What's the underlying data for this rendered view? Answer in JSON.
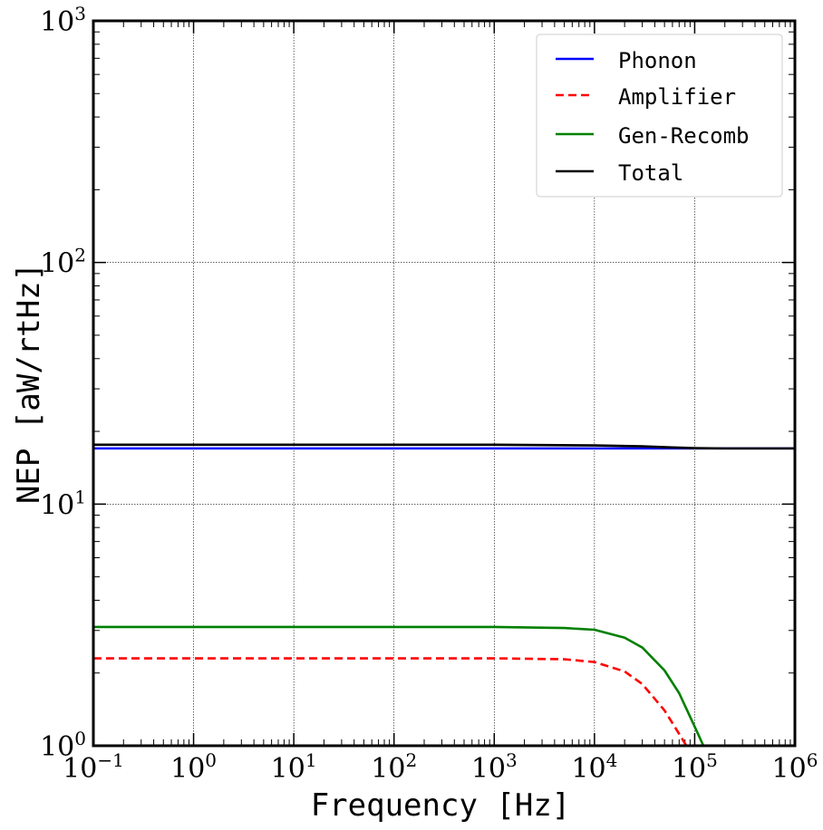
{
  "chart_data": {
    "type": "line",
    "xscale": "log",
    "yscale": "log",
    "xlim": [
      0.1,
      1000000
    ],
    "ylim": [
      1,
      1000
    ],
    "xlabel": "Frequency [Hz]",
    "ylabel": "NEP [aW/rtHz]",
    "title": "",
    "grid": true,
    "legend_position": "top-right",
    "x_ticks": [
      {
        "base": "10",
        "exp": "−1",
        "value": 0.1
      },
      {
        "base": "10",
        "exp": "0",
        "value": 1
      },
      {
        "base": "10",
        "exp": "1",
        "value": 10
      },
      {
        "base": "10",
        "exp": "2",
        "value": 100
      },
      {
        "base": "10",
        "exp": "3",
        "value": 1000
      },
      {
        "base": "10",
        "exp": "4",
        "value": 10000
      },
      {
        "base": "10",
        "exp": "5",
        "value": 100000
      },
      {
        "base": "10",
        "exp": "6",
        "value": 1000000
      }
    ],
    "y_ticks": [
      {
        "base": "10",
        "exp": "0",
        "value": 1
      },
      {
        "base": "10",
        "exp": "1",
        "value": 10
      },
      {
        "base": "10",
        "exp": "2",
        "value": 100
      },
      {
        "base": "10",
        "exp": "3",
        "value": 1000
      }
    ],
    "series": [
      {
        "name": "Phonon",
        "color": "#0000ff",
        "style": "solid",
        "x": [
          0.1,
          1,
          10,
          100,
          1000,
          10000,
          100000,
          1000000
        ],
        "y": [
          17.0,
          17.0,
          17.0,
          17.0,
          17.0,
          17.0,
          17.0,
          17.0
        ]
      },
      {
        "name": "Amplifier",
        "color": "#ff0000",
        "style": "dashed",
        "x": [
          0.1,
          1,
          10,
          100,
          1000,
          5000,
          10000,
          20000,
          30000,
          50000,
          70000,
          85000
        ],
        "y": [
          2.3,
          2.3,
          2.3,
          2.3,
          2.3,
          2.28,
          2.22,
          2.03,
          1.8,
          1.4,
          1.12,
          0.98
        ]
      },
      {
        "name": "Gen-Recomb",
        "color": "#008000",
        "style": "solid",
        "x": [
          0.1,
          1,
          10,
          100,
          1000,
          5000,
          10000,
          20000,
          30000,
          50000,
          70000,
          100000,
          125000
        ],
        "y": [
          3.1,
          3.1,
          3.1,
          3.1,
          3.1,
          3.07,
          3.02,
          2.8,
          2.55,
          2.05,
          1.65,
          1.2,
          0.98
        ]
      },
      {
        "name": "Total",
        "color": "#000000",
        "style": "solid",
        "x": [
          0.1,
          1,
          10,
          100,
          1000,
          10000,
          30000,
          60000,
          100000,
          200000,
          1000000
        ],
        "y": [
          17.6,
          17.6,
          17.6,
          17.6,
          17.6,
          17.5,
          17.35,
          17.15,
          17.05,
          17.0,
          17.0
        ]
      }
    ]
  }
}
